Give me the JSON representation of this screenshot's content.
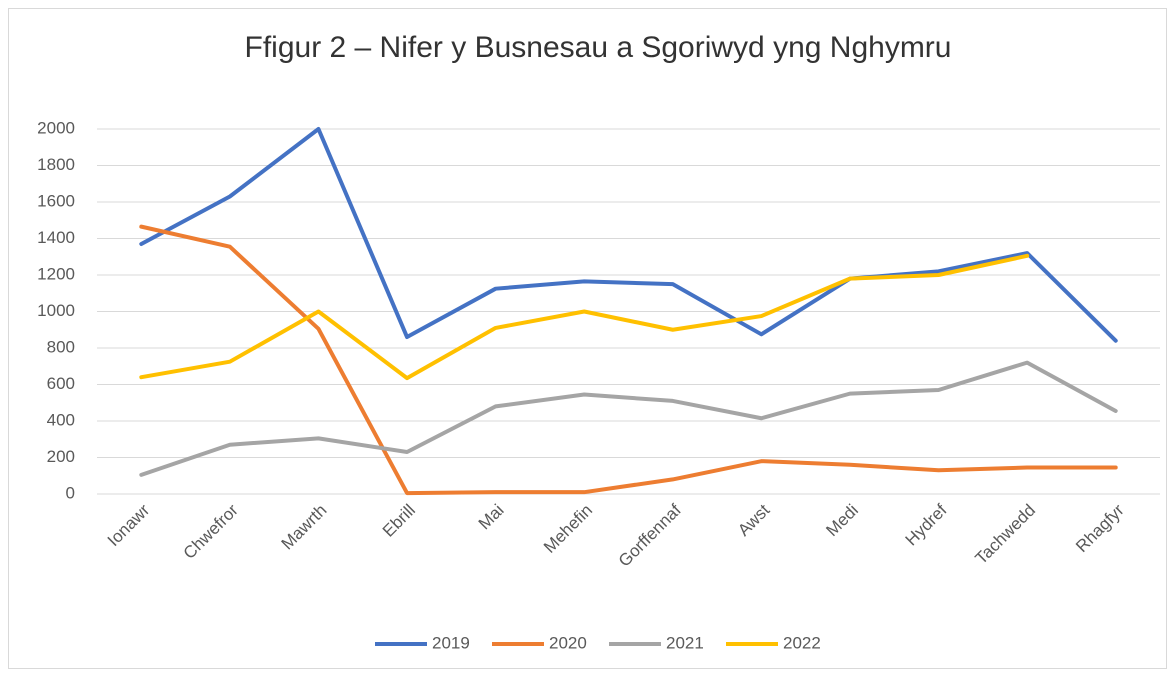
{
  "chart_data": {
    "type": "line",
    "title": "Ffigur 2 – Nifer y Busnesau a Sgoriwyd yng Nghymru",
    "categories": [
      "Ionawr",
      "Chwefror",
      "Mawrth",
      "Ebrill",
      "Mai",
      "Mehefin",
      "Gorffennaf",
      "Awst",
      "Medi",
      "Hydref",
      "Tachwedd",
      "Rhagfyr"
    ],
    "series": [
      {
        "name": "2019",
        "color": "#4472c4",
        "values": [
          1370,
          1630,
          2000,
          860,
          1125,
          1165,
          1150,
          875,
          1180,
          1220,
          1320,
          840
        ]
      },
      {
        "name": "2020",
        "color": "#ed7d31",
        "values": [
          1465,
          1355,
          905,
          5,
          10,
          10,
          80,
          180,
          160,
          130,
          145,
          145
        ]
      },
      {
        "name": "2021",
        "color": "#a5a5a5",
        "values": [
          105,
          270,
          305,
          230,
          480,
          545,
          510,
          415,
          550,
          570,
          720,
          455
        ]
      },
      {
        "name": "2022",
        "color": "#ffc000",
        "values": [
          640,
          725,
          1000,
          635,
          910,
          1000,
          900,
          975,
          1180,
          1200,
          1305,
          null
        ]
      }
    ],
    "ylim": [
      0,
      2000
    ],
    "yticks": [
      0,
      200,
      400,
      600,
      800,
      1000,
      1200,
      1400,
      1600,
      1800,
      2000
    ],
    "grid": true,
    "legend": "bottom"
  }
}
